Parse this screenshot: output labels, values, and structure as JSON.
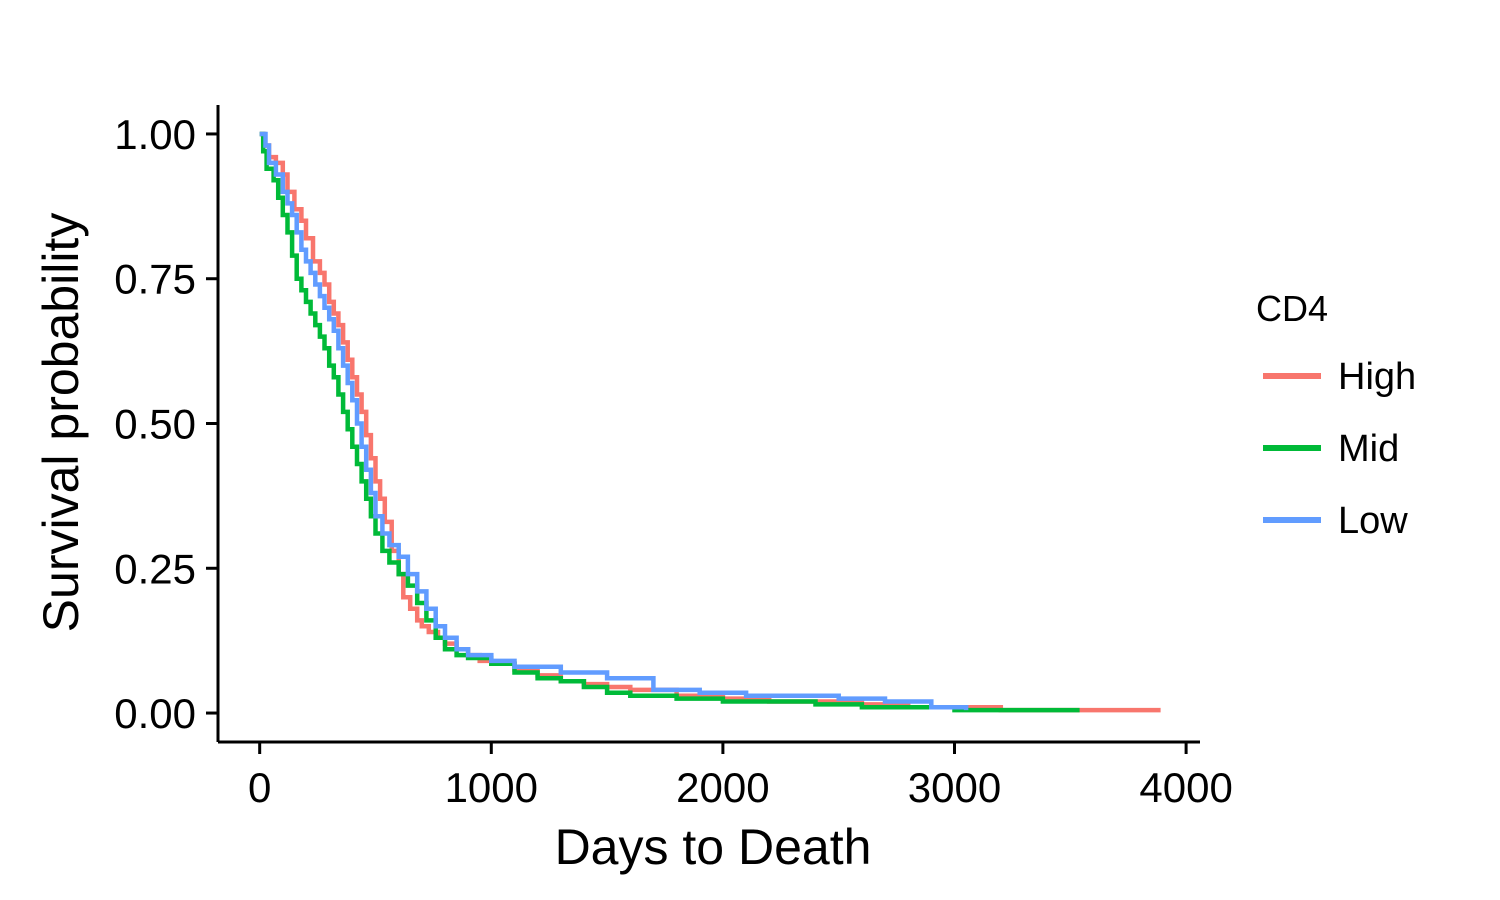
{
  "chart_data": {
    "type": "line",
    "subtype": "kaplan-meier step survival curve",
    "title": "",
    "xlabel": "Days to Death",
    "ylabel": "Survival probability",
    "xlim": [
      -180,
      4060
    ],
    "ylim": [
      -0.05,
      1.05
    ],
    "x_ticks": [
      0,
      1000,
      2000,
      3000,
      4000
    ],
    "x_tick_labels": [
      "0",
      "1000",
      "2000",
      "3000",
      "4000"
    ],
    "y_ticks": [
      0,
      0.25,
      0.5,
      0.75,
      1
    ],
    "y_tick_labels": [
      "0.00",
      "0.25",
      "0.50",
      "0.75",
      "1.00"
    ],
    "grid": false,
    "legend": {
      "title": "CD4",
      "position": "right"
    },
    "series": [
      {
        "name": "High",
        "color": "#F8766D",
        "points": [
          [
            0,
            1.0
          ],
          [
            20,
            0.98
          ],
          [
            40,
            0.96
          ],
          [
            70,
            0.95
          ],
          [
            100,
            0.93
          ],
          [
            120,
            0.9
          ],
          [
            150,
            0.87
          ],
          [
            180,
            0.85
          ],
          [
            200,
            0.82
          ],
          [
            230,
            0.78
          ],
          [
            260,
            0.76
          ],
          [
            280,
            0.74
          ],
          [
            300,
            0.71
          ],
          [
            320,
            0.69
          ],
          [
            340,
            0.67
          ],
          [
            360,
            0.64
          ],
          [
            380,
            0.61
          ],
          [
            400,
            0.58
          ],
          [
            420,
            0.55
          ],
          [
            440,
            0.52
          ],
          [
            460,
            0.48
          ],
          [
            480,
            0.44
          ],
          [
            500,
            0.4
          ],
          [
            520,
            0.37
          ],
          [
            540,
            0.33
          ],
          [
            570,
            0.28
          ],
          [
            600,
            0.24
          ],
          [
            620,
            0.2
          ],
          [
            650,
            0.18
          ],
          [
            680,
            0.16
          ],
          [
            700,
            0.15
          ],
          [
            730,
            0.14
          ],
          [
            770,
            0.13
          ],
          [
            800,
            0.12
          ],
          [
            850,
            0.11
          ],
          [
            900,
            0.1
          ],
          [
            950,
            0.09
          ],
          [
            1000,
            0.085
          ],
          [
            1100,
            0.075
          ],
          [
            1200,
            0.065
          ],
          [
            1300,
            0.055
          ],
          [
            1400,
            0.05
          ],
          [
            1500,
            0.045
          ],
          [
            1600,
            0.04
          ],
          [
            1800,
            0.03
          ],
          [
            2000,
            0.025
          ],
          [
            2200,
            0.02
          ],
          [
            2400,
            0.02
          ],
          [
            2600,
            0.015
          ],
          [
            2800,
            0.01
          ],
          [
            3000,
            0.01
          ],
          [
            3200,
            0.005
          ],
          [
            3500,
            0.005
          ],
          [
            3890,
            0.005
          ]
        ]
      },
      {
        "name": "Mid",
        "color": "#00BA38",
        "points": [
          [
            0,
            1.0
          ],
          [
            15,
            0.97
          ],
          [
            30,
            0.94
          ],
          [
            60,
            0.92
          ],
          [
            80,
            0.89
          ],
          [
            100,
            0.86
          ],
          [
            120,
            0.83
          ],
          [
            140,
            0.79
          ],
          [
            160,
            0.75
          ],
          [
            180,
            0.73
          ],
          [
            200,
            0.71
          ],
          [
            220,
            0.69
          ],
          [
            240,
            0.67
          ],
          [
            260,
            0.65
          ],
          [
            280,
            0.63
          ],
          [
            300,
            0.6
          ],
          [
            320,
            0.58
          ],
          [
            340,
            0.55
          ],
          [
            360,
            0.52
          ],
          [
            380,
            0.49
          ],
          [
            400,
            0.46
          ],
          [
            420,
            0.43
          ],
          [
            440,
            0.4
          ],
          [
            460,
            0.37
          ],
          [
            480,
            0.34
          ],
          [
            500,
            0.31
          ],
          [
            530,
            0.28
          ],
          [
            560,
            0.26
          ],
          [
            600,
            0.24
          ],
          [
            640,
            0.22
          ],
          [
            680,
            0.19
          ],
          [
            720,
            0.16
          ],
          [
            760,
            0.13
          ],
          [
            800,
            0.11
          ],
          [
            850,
            0.1
          ],
          [
            900,
            0.095
          ],
          [
            1000,
            0.085
          ],
          [
            1100,
            0.07
          ],
          [
            1200,
            0.06
          ],
          [
            1300,
            0.055
          ],
          [
            1400,
            0.045
          ],
          [
            1500,
            0.035
          ],
          [
            1600,
            0.03
          ],
          [
            1800,
            0.025
          ],
          [
            2000,
            0.02
          ],
          [
            2200,
            0.02
          ],
          [
            2400,
            0.015
          ],
          [
            2600,
            0.01
          ],
          [
            2800,
            0.01
          ],
          [
            3000,
            0.005
          ],
          [
            3300,
            0.005
          ],
          [
            3540,
            0.005
          ]
        ]
      },
      {
        "name": "Low",
        "color": "#619CFF",
        "points": [
          [
            0,
            1.0
          ],
          [
            25,
            0.98
          ],
          [
            40,
            0.95
          ],
          [
            70,
            0.93
          ],
          [
            100,
            0.9
          ],
          [
            120,
            0.88
          ],
          [
            140,
            0.86
          ],
          [
            160,
            0.83
          ],
          [
            180,
            0.8
          ],
          [
            200,
            0.78
          ],
          [
            220,
            0.76
          ],
          [
            240,
            0.74
          ],
          [
            260,
            0.72
          ],
          [
            280,
            0.7
          ],
          [
            300,
            0.68
          ],
          [
            320,
            0.66
          ],
          [
            340,
            0.63
          ],
          [
            360,
            0.6
          ],
          [
            380,
            0.57
          ],
          [
            400,
            0.54
          ],
          [
            420,
            0.5
          ],
          [
            440,
            0.46
          ],
          [
            460,
            0.42
          ],
          [
            480,
            0.38
          ],
          [
            500,
            0.34
          ],
          [
            530,
            0.31
          ],
          [
            560,
            0.29
          ],
          [
            600,
            0.27
          ],
          [
            640,
            0.24
          ],
          [
            680,
            0.21
          ],
          [
            720,
            0.18
          ],
          [
            760,
            0.15
          ],
          [
            800,
            0.13
          ],
          [
            850,
            0.11
          ],
          [
            900,
            0.1
          ],
          [
            1000,
            0.09
          ],
          [
            1100,
            0.08
          ],
          [
            1300,
            0.07
          ],
          [
            1500,
            0.06
          ],
          [
            1700,
            0.04
          ],
          [
            1900,
            0.035
          ],
          [
            2100,
            0.03
          ],
          [
            2300,
            0.03
          ],
          [
            2500,
            0.025
          ],
          [
            2700,
            0.02
          ],
          [
            2900,
            0.01
          ],
          [
            3050,
            0.005
          ]
        ]
      }
    ]
  }
}
